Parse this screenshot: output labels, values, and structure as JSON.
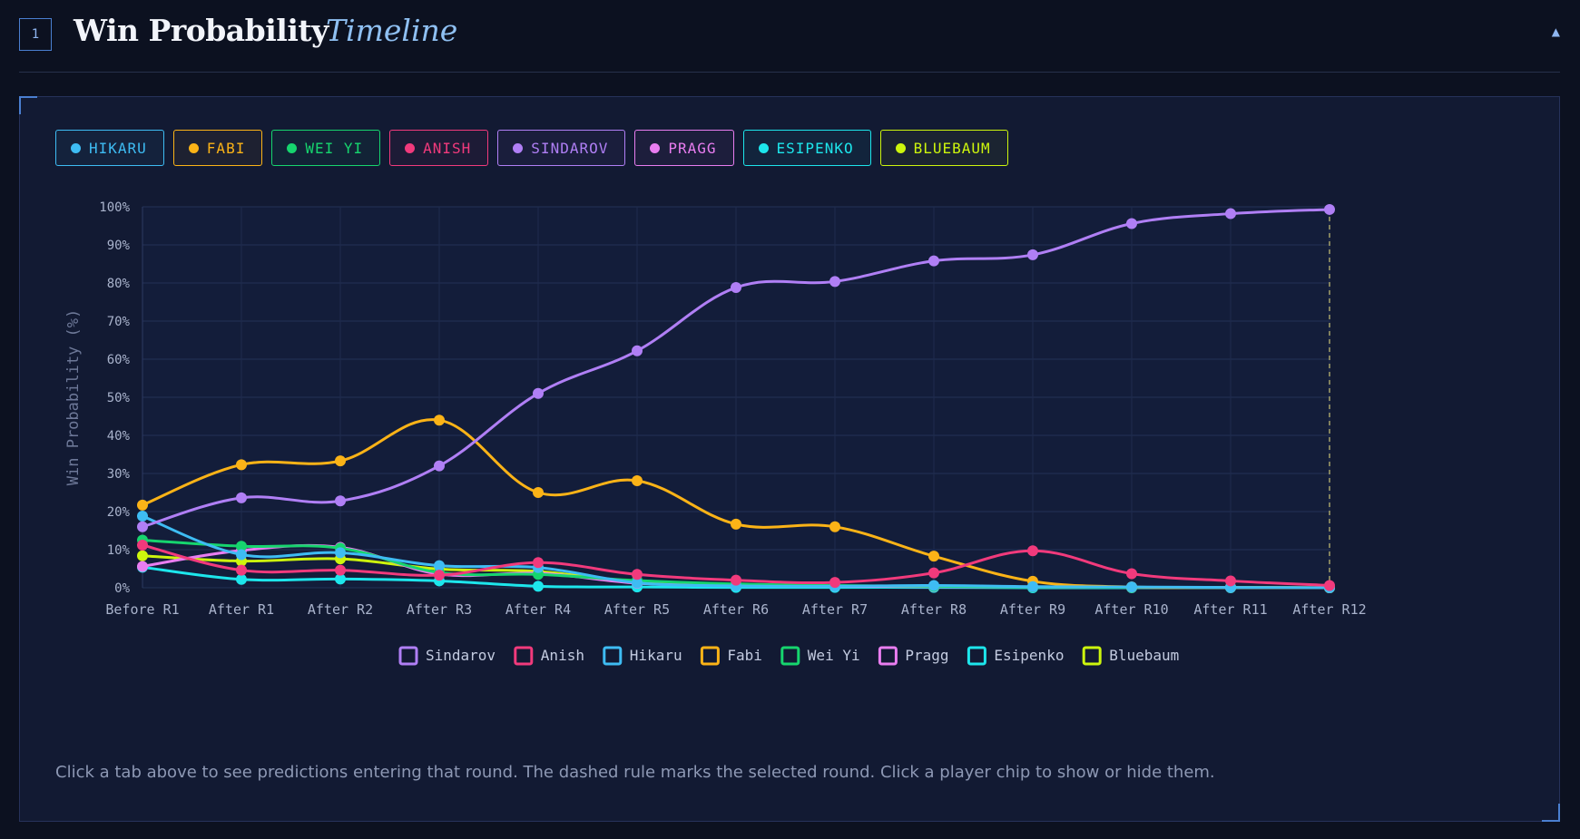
{
  "header": {
    "section_number": "1",
    "title": "Win Probability",
    "subtitle": "Timeline",
    "collapse_icon": "triangle-up-icon"
  },
  "chips": [
    {
      "label": "HIKARU",
      "color": "#3ebcf3"
    },
    {
      "label": "FABI",
      "color": "#fbb317"
    },
    {
      "label": "WEI YI",
      "color": "#16d56e"
    },
    {
      "label": "ANISH",
      "color": "#f13a7c"
    },
    {
      "label": "SINDAROV",
      "color": "#b07ff5"
    },
    {
      "label": "PRAGG",
      "color": "#e97df0"
    },
    {
      "label": "ESIPENKO",
      "color": "#1de6ec"
    },
    {
      "label": "BLUEBAUM",
      "color": "#cdf50d"
    }
  ],
  "footnote": "Click a tab above to see predictions entering that round. The dashed rule marks the selected round. Click a player chip to show or hide them.",
  "chart_data": {
    "type": "line",
    "ylabel": "Win Probability (%)",
    "ylim": [
      0,
      100
    ],
    "yticks": [
      "0%",
      "10%",
      "20%",
      "30%",
      "40%",
      "50%",
      "60%",
      "70%",
      "80%",
      "90%",
      "100%"
    ],
    "categories": [
      "Before R1",
      "After R1",
      "After R2",
      "After R3",
      "After R4",
      "After R5",
      "After R6",
      "After R7",
      "After R8",
      "After R9",
      "After R10",
      "After R11",
      "After R12"
    ],
    "selected_round": "After R12",
    "legend_position": "bottom",
    "grid": true,
    "series": [
      {
        "name": "Sindarov",
        "color": "#b07ff5",
        "values": [
          16,
          23.6,
          22.8,
          32,
          51,
          62.2,
          78.8,
          80.4,
          85.8,
          87.4,
          95.6,
          98.2,
          99.3
        ]
      },
      {
        "name": "Anish",
        "color": "#f13a7c",
        "values": [
          11.2,
          4.6,
          4.6,
          3.3,
          6.6,
          3.5,
          2,
          1.4,
          3.9,
          9.7,
          3.7,
          1.8,
          0.6
        ]
      },
      {
        "name": "Hikaru",
        "color": "#3ebcf3",
        "values": [
          18.8,
          8.7,
          9.2,
          5.8,
          5.3,
          1.3,
          0.5,
          0.4,
          0.6,
          0.3,
          0.2,
          0.1,
          0
        ]
      },
      {
        "name": "Fabi",
        "color": "#fbb317",
        "values": [
          21.7,
          32.3,
          33.3,
          44,
          25,
          28.1,
          16.7,
          16,
          8.3,
          1.7,
          0.2,
          0.1,
          0
        ]
      },
      {
        "name": "Wei Yi",
        "color": "#16d56e",
        "values": [
          12.5,
          10.9,
          10.4,
          4,
          3.5,
          1.9,
          1,
          0.6,
          0.4,
          0.2,
          0.1,
          0.1,
          0
        ]
      },
      {
        "name": "Pragg",
        "color": "#e97df0",
        "values": [
          5.6,
          9.8,
          10.6,
          3.6,
          3.8,
          1.2,
          0.6,
          0.4,
          0.3,
          0.2,
          0.1,
          0.1,
          0
        ]
      },
      {
        "name": "Esipenko",
        "color": "#1de6ec",
        "values": [
          5.4,
          2.2,
          2.3,
          1.8,
          0.4,
          0.2,
          0.1,
          0.1,
          0.1,
          0,
          0,
          0,
          0
        ]
      },
      {
        "name": "Bluebaum",
        "color": "#cdf50d",
        "values": [
          8.4,
          7,
          7.6,
          4.9,
          4.3,
          1.4,
          0.6,
          0.4,
          0.3,
          0.2,
          0.1,
          0.1,
          0
        ]
      }
    ]
  }
}
